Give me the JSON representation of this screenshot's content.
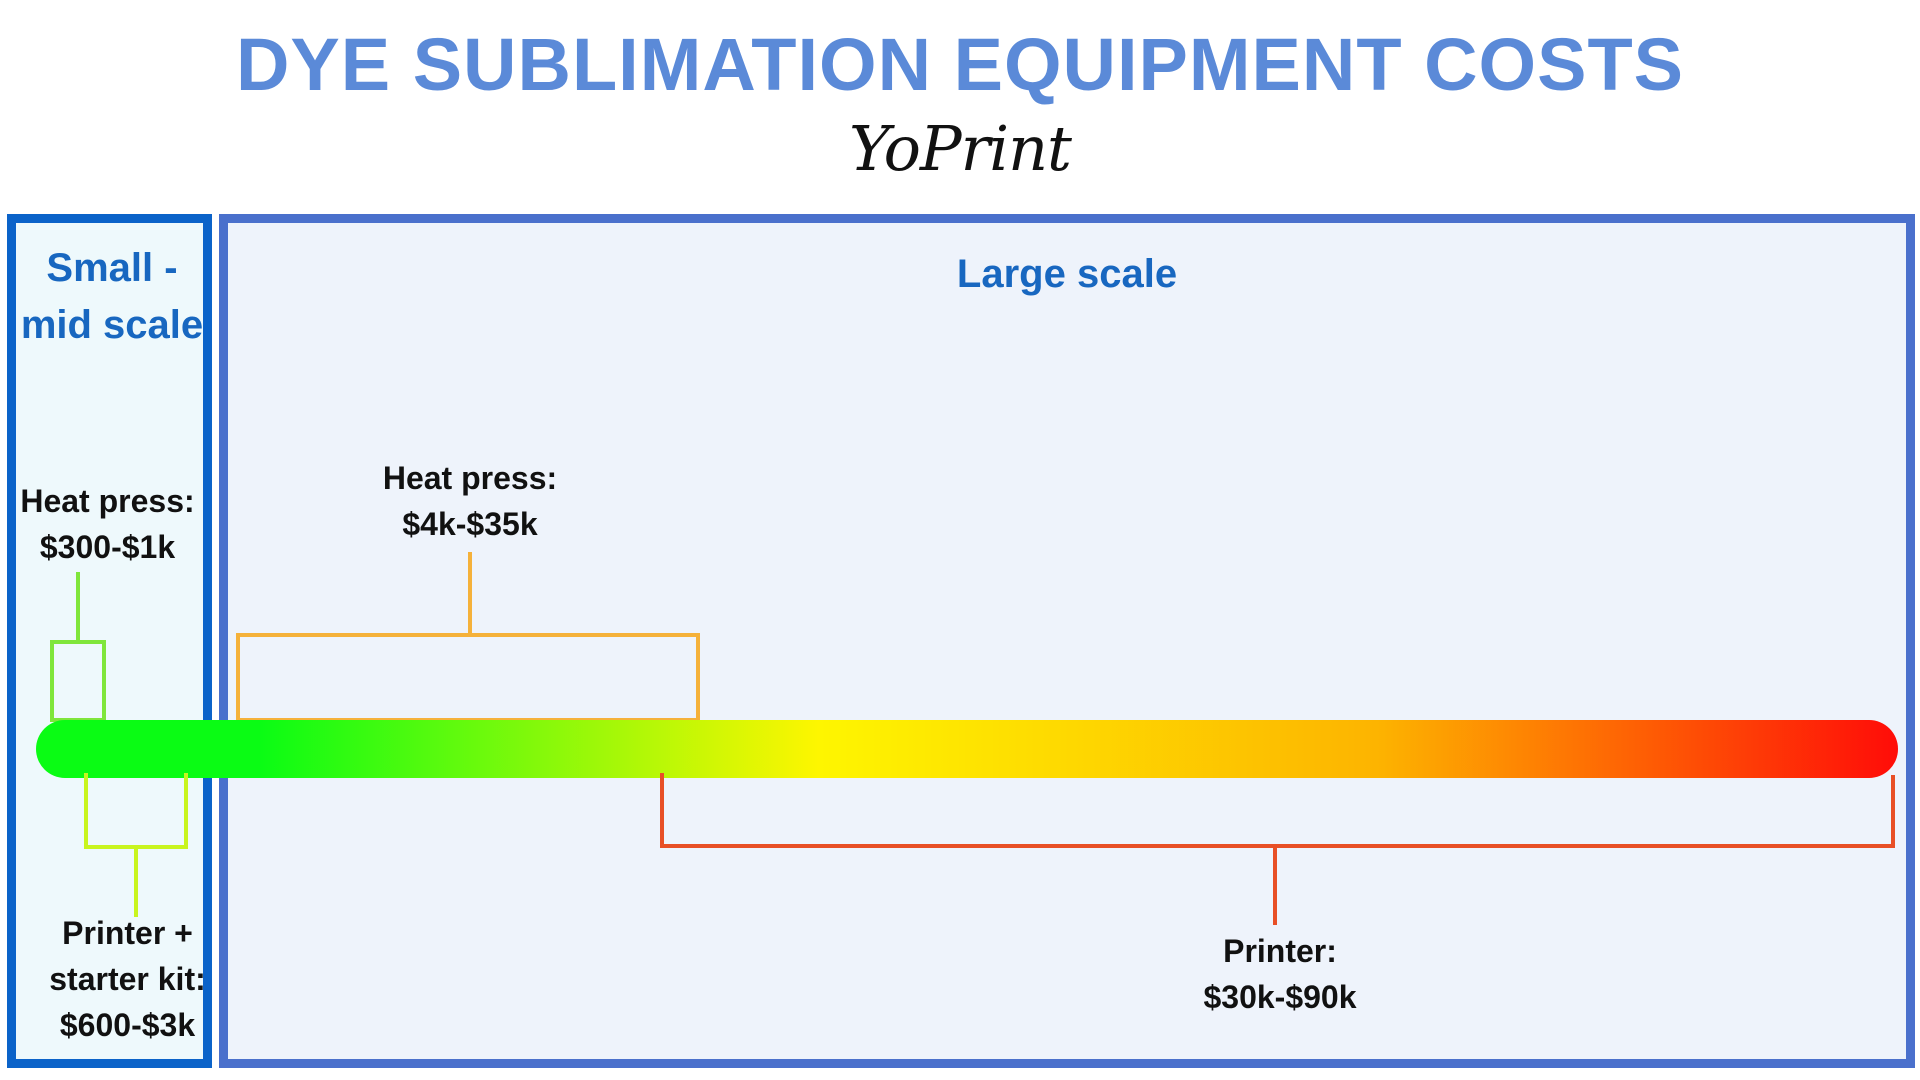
{
  "title": "DYE SUBLIMATION EQUIPMENT COSTS",
  "brand": "YoPrint",
  "colors": {
    "title": "#5b8ad8",
    "small_border": "#0b63c9",
    "large_border": "#4a70cc",
    "panel_title": "#1867c0",
    "gradient_start": "#0afc14",
    "gradient_mid": "#fef600",
    "gradient_end": "#ff0c08",
    "small_press_bracket": "#7fe63b",
    "small_printer_bracket": "#c8f51f",
    "large_press_bracket": "#f5b13a",
    "large_printer_bracket": "#e84f26"
  },
  "panels": {
    "small": {
      "title_line1": "Small -",
      "title_line2": "mid scale",
      "heat_press_line1": "Heat press:",
      "heat_press_line2": "$300-$1k",
      "printer_line1": "Printer +",
      "printer_line2": "starter kit:",
      "printer_line3": "$600-$3k"
    },
    "large": {
      "title": "Large scale",
      "heat_press_line1": "Heat press:",
      "heat_press_line2": "$4k-$35k",
      "printer_line1": "Printer:",
      "printer_line2": "$30k-$90k"
    }
  }
}
